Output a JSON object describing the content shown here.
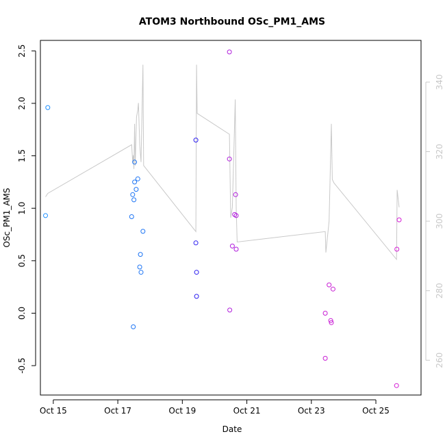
{
  "chart_data": {
    "type": "scatter",
    "title": "ATOM3 Northbound OSc_PM1_AMS",
    "xlabel": "Date",
    "ylabel": "OSc_PM1_AMS",
    "x_unit": "days (Oct)",
    "xlim": [
      14.6,
      26.4
    ],
    "ylim": [
      -0.78,
      2.6
    ],
    "xticks": [
      {
        "value": 15,
        "label": "Oct 15"
      },
      {
        "value": 17,
        "label": "Oct 17"
      },
      {
        "value": 19,
        "label": "Oct 19"
      },
      {
        "value": 21,
        "label": "Oct 21"
      },
      {
        "value": 23,
        "label": "Oct 23"
      },
      {
        "value": 25,
        "label": "Oct 25"
      }
    ],
    "yticks": [
      {
        "value": -0.5,
        "label": "-0.5"
      },
      {
        "value": 0.0,
        "label": "0.0"
      },
      {
        "value": 0.5,
        "label": "0.5"
      },
      {
        "value": 1.0,
        "label": "1.0"
      },
      {
        "value": 1.5,
        "label": "1.5"
      },
      {
        "value": 2.0,
        "label": "2.0"
      },
      {
        "value": 2.5,
        "label": "2.5"
      }
    ],
    "y2_axis": {
      "lim": [
        250,
        352
      ],
      "ticks": [
        {
          "value": 260,
          "label": "260"
        },
        {
          "value": 280,
          "label": "280"
        },
        {
          "value": 300,
          "label": "300"
        },
        {
          "value": 320,
          "label": "320"
        },
        {
          "value": 340,
          "label": "340"
        }
      ],
      "color": "#c8c8c8"
    },
    "points": [
      {
        "x": 14.76,
        "y": 0.93,
        "color": "#1e90ff"
      },
      {
        "x": 14.83,
        "y": 1.96,
        "color": "#1e90ff"
      },
      {
        "x": 17.43,
        "y": 0.92,
        "color": "#1c74f4"
      },
      {
        "x": 17.46,
        "y": 1.13,
        "color": "#1c74f4"
      },
      {
        "x": 17.48,
        "y": -0.13,
        "color": "#1c74f4"
      },
      {
        "x": 17.5,
        "y": 1.08,
        "color": "#1c74f4"
      },
      {
        "x": 17.52,
        "y": 1.44,
        "color": "#1c74f4"
      },
      {
        "x": 17.52,
        "y": 1.25,
        "color": "#1c74f4"
      },
      {
        "x": 17.57,
        "y": 1.18,
        "color": "#1c74f4"
      },
      {
        "x": 17.62,
        "y": 1.28,
        "color": "#1c74f4"
      },
      {
        "x": 17.68,
        "y": 0.44,
        "color": "#1c74f4"
      },
      {
        "x": 17.7,
        "y": 0.56,
        "color": "#1c74f4"
      },
      {
        "x": 17.72,
        "y": 0.39,
        "color": "#1c74f4"
      },
      {
        "x": 17.78,
        "y": 0.78,
        "color": "#1c74f4"
      },
      {
        "x": 19.42,
        "y": 1.65,
        "color": "#2a1cf0"
      },
      {
        "x": 19.42,
        "y": 0.67,
        "color": "#2a1cf0"
      },
      {
        "x": 19.44,
        "y": 0.39,
        "color": "#2a1cf0"
      },
      {
        "x": 19.44,
        "y": 0.16,
        "color": "#2a1cf0"
      },
      {
        "x": 20.46,
        "y": 2.49,
        "color": "#b01cdc"
      },
      {
        "x": 20.46,
        "y": 1.47,
        "color": "#b01cdc"
      },
      {
        "x": 20.47,
        "y": 0.03,
        "color": "#b01cdc"
      },
      {
        "x": 20.55,
        "y": 0.64,
        "color": "#b01cdc"
      },
      {
        "x": 20.62,
        "y": 0.94,
        "color": "#b01cdc"
      },
      {
        "x": 20.65,
        "y": 1.13,
        "color": "#b01cdc"
      },
      {
        "x": 20.67,
        "y": 0.93,
        "color": "#b01cdc"
      },
      {
        "x": 20.67,
        "y": 0.61,
        "color": "#b01cdc"
      },
      {
        "x": 23.43,
        "y": 0.0,
        "color": "#c81cd4"
      },
      {
        "x": 23.43,
        "y": -0.43,
        "color": "#c81cd4"
      },
      {
        "x": 23.55,
        "y": 0.27,
        "color": "#c81cd4"
      },
      {
        "x": 23.6,
        "y": -0.07,
        "color": "#c81cd4"
      },
      {
        "x": 23.62,
        "y": -0.09,
        "color": "#c81cd4"
      },
      {
        "x": 23.67,
        "y": 0.23,
        "color": "#c81cd4"
      },
      {
        "x": 25.64,
        "y": -0.69,
        "color": "#d41cd4"
      },
      {
        "x": 25.65,
        "y": 0.61,
        "color": "#d41cd4"
      },
      {
        "x": 25.72,
        "y": 0.89,
        "color": "#d41cd4"
      }
    ],
    "secondary_line": {
      "axis": "y2",
      "color": "#c8c8c8",
      "points": [
        [
          14.76,
          307
        ],
        [
          14.83,
          308
        ],
        [
          17.43,
          322
        ],
        [
          17.46,
          317
        ],
        [
          17.48,
          319
        ],
        [
          17.5,
          315
        ],
        [
          17.52,
          328
        ],
        [
          17.54,
          316
        ],
        [
          17.58,
          330
        ],
        [
          17.62,
          332
        ],
        [
          17.64,
          334
        ],
        [
          17.68,
          322
        ],
        [
          17.72,
          317
        ],
        [
          17.78,
          345
        ],
        [
          17.8,
          316
        ],
        [
          19.42,
          297
        ],
        [
          19.44,
          345
        ],
        [
          19.46,
          331
        ],
        [
          20.46,
          325
        ],
        [
          20.5,
          301
        ],
        [
          20.55,
          304
        ],
        [
          20.64,
          335
        ],
        [
          20.67,
          304
        ],
        [
          20.7,
          294
        ],
        [
          23.43,
          297
        ],
        [
          23.45,
          291
        ],
        [
          23.55,
          300
        ],
        [
          23.62,
          328
        ],
        [
          23.65,
          312
        ],
        [
          23.7,
          311
        ],
        [
          25.64,
          289
        ],
        [
          25.66,
          309
        ],
        [
          25.72,
          304
        ]
      ]
    },
    "grid": false,
    "legend": "none"
  }
}
